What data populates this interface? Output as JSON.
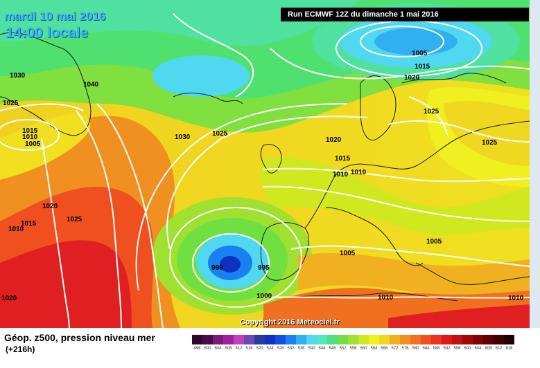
{
  "header": {
    "date": "mardi 10 mai 2016",
    "time": "14:00 locale",
    "run": "Run ECMWF 12Z du dimanche 1 mai 2016"
  },
  "footer": {
    "variable": "Géop. z500, pression niveau mer",
    "lead_time": "(+216h)",
    "copyright": "Copyright 2016 Meteociel.fr"
  },
  "isobar_labels": [
    "1030",
    "1040",
    "1025",
    "1015",
    "1010",
    "1005",
    "1030",
    "1025",
    "1005",
    "1015",
    "1020",
    "1025",
    "1020",
    "1025",
    "1015",
    "1010",
    "1020",
    "1015",
    "1010",
    "1025",
    "990",
    "995",
    "1000",
    "1005",
    "1005",
    "1010",
    "1010",
    "1020",
    "1010"
  ],
  "scale": {
    "values": [
      "496",
      "500",
      "504",
      "508",
      "512",
      "516",
      "520",
      "524",
      "528",
      "532",
      "536",
      "540",
      "544",
      "548",
      "552",
      "556",
      "560",
      "564",
      "568",
      "572",
      "576",
      "580",
      "584",
      "588",
      "592",
      "596",
      "600",
      "604",
      "608",
      "612",
      "616"
    ],
    "colors": [
      "#2b0a2b",
      "#4b0a4b",
      "#7a1a7a",
      "#a020a0",
      "#c040c0",
      "#6a4ab0",
      "#2a3aa0",
      "#1030c0",
      "#1050e0",
      "#1880f0",
      "#30b0f0",
      "#50d8f0",
      "#50e8c0",
      "#50e080",
      "#70e040",
      "#a0e030",
      "#d0e820",
      "#f0f020",
      "#f0d820",
      "#f0b020",
      "#f09020",
      "#f07020",
      "#f05020",
      "#f03020",
      "#e01818",
      "#c01010",
      "#a00808",
      "#800404",
      "#600202",
      "#400101",
      "#200000"
    ]
  }
}
